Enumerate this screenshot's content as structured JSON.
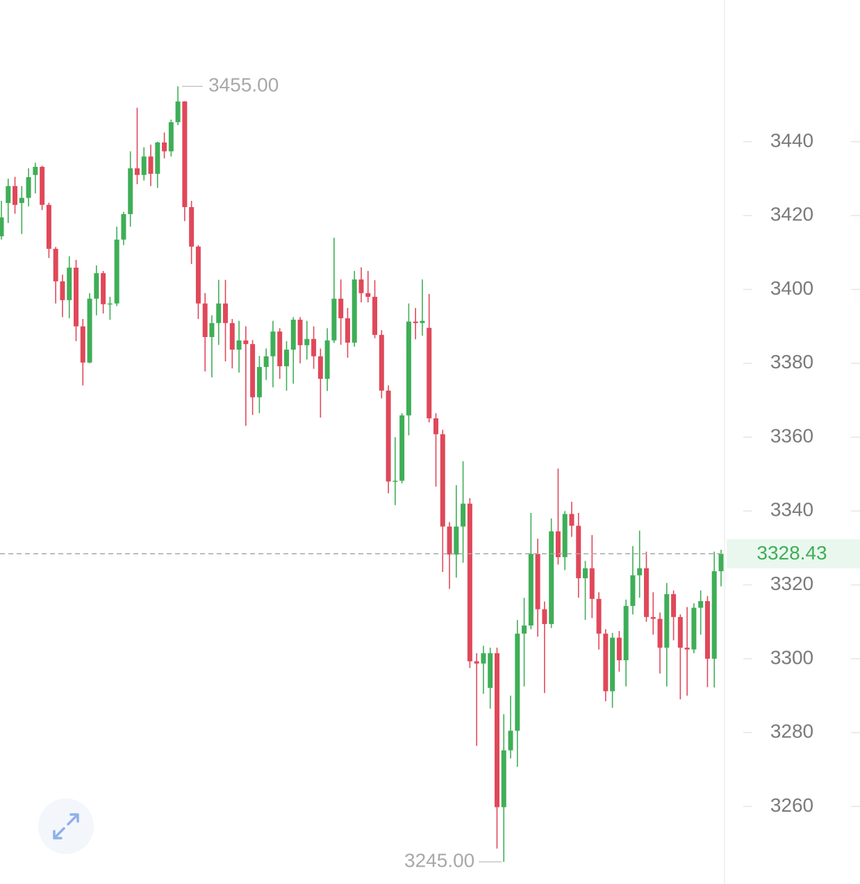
{
  "chart_data": {
    "type": "candlestick",
    "open": [
      3414.4,
      3423.4,
      3428.0,
      3423.4,
      3424.8,
      3431.0,
      3433.2,
      3422.9,
      3411.0,
      3402.2,
      3397.1,
      3405.9,
      3390.0,
      3380.2,
      3397.5,
      3404.4,
      3396.0,
      3396.2,
      3413.5,
      3420.4,
      3432.8,
      3431.0,
      3436.0,
      3431.3,
      3439.8,
      3437.4,
      3445.3,
      3450.9,
      3422.3,
      3411.6,
      3396.2,
      3387.1,
      3390.9,
      3396.2,
      3390.9,
      3383.7,
      3386.2,
      3385.2,
      3370.8,
      3379.0,
      3381.9,
      3388.6,
      3379.2,
      3383.7,
      3391.8,
      3384.9,
      3386.6,
      3381.9,
      3375.8,
      3386.2,
      3397.5,
      3392.2,
      3385.6,
      3402.7,
      3399.0,
      3398.0,
      3387.7,
      3372.6,
      3348.0,
      3348.2,
      3365.9,
      3391.3,
      3390.9,
      3389.6,
      3365.1,
      3360.8,
      3335.8,
      3328.2,
      3335.8,
      3342.0,
      3299.3,
      3298.7,
      3292.1,
      3301.5,
      3259.8,
      3275.2,
      3280.5,
      3306.8,
      3309.0,
      3328.4,
      3313.4,
      3309.4,
      3334.5,
      3327.5,
      3339.2,
      3336.0,
      3321.8,
      3324.5,
      3316.2,
      3306.8,
      3291.2,
      3305.7,
      3299.6,
      3314.3,
      3322.6,
      3324.5,
      3311.3,
      3310.8,
      3303.0,
      3317.5,
      3311.3,
      3303.0,
      3302.5,
      3313.8,
      3315.6,
      3300.0,
      3323.7
    ],
    "high": [
      3424.0,
      3430.0,
      3430.5,
      3428.0,
      3432.8,
      3434.3,
      3433.5,
      3423.5,
      3411.5,
      3404.0,
      3409.0,
      3408.0,
      3392.0,
      3399.0,
      3406.5,
      3405.0,
      3398.0,
      3417.0,
      3421.0,
      3437.4,
      3449.2,
      3438.5,
      3439.2,
      3440.0,
      3442.5,
      3446.0,
      3455,
      3451.0,
      3424.0,
      3412.0,
      3399.0,
      3393.0,
      3402.6,
      3402.6,
      3392.0,
      3391.5,
      3390.0,
      3386.3,
      3382.0,
      3384.0,
      3391.5,
      3389.5,
      3386.0,
      3392.5,
      3392.5,
      3391.5,
      3390.0,
      3384.0,
      3389.5,
      3414.0,
      3402.7,
      3395.0,
      3405.0,
      3406.0,
      3405.0,
      3402.5,
      3389.0,
      3374.0,
      3360.0,
      3366.5,
      3396.2,
      3395.0,
      3402.7,
      3398.8,
      3366.5,
      3362.0,
      3337.0,
      3347.0,
      3353.5,
      3343.5,
      3301.5,
      3303.5,
      3303.0,
      3303.0,
      3285.0,
      3290.0,
      3310.5,
      3316.5,
      3339.5,
      3332.5,
      3315.5,
      3338.0,
      3351.5,
      3340.0,
      3342.5,
      3339.5,
      3326.5,
      3333.5,
      3318.0,
      3308.0,
      3307.0,
      3307.5,
      3316.0,
      3330.5,
      3334.7,
      3329.0,
      3318.0,
      3312.5,
      3320.5,
      3318.5,
      3312.0,
      3314.0,
      3315.0,
      3318.5,
      3317.0,
      3329.0,
      3329.5
    ],
    "low": [
      3413.5,
      3418.0,
      3420.5,
      3415.0,
      3422.5,
      3426.0,
      3421.5,
      3408.5,
      3396.2,
      3392.5,
      3392.2,
      3386.0,
      3374.0,
      3380.0,
      3393.0,
      3393.5,
      3391.8,
      3395.5,
      3412.0,
      3417.0,
      3428.5,
      3429.5,
      3428.0,
      3427.5,
      3435.5,
      3436.0,
      3444.5,
      3418.5,
      3406.9,
      3392.0,
      3377.8,
      3376.2,
      3385.0,
      3380.5,
      3378.6,
      3377.5,
      3363.1,
      3366.0,
      3366.5,
      3375.5,
      3373.5,
      3375.8,
      3372.6,
      3374.5,
      3380.0,
      3381.0,
      3378.5,
      3365.3,
      3372.5,
      3385.5,
      3385.0,
      3381.5,
      3384.5,
      3396.5,
      3396.5,
      3386.8,
      3370.5,
      3344.8,
      3341.6,
      3347.5,
      3360.5,
      3386.5,
      3387.5,
      3364.0,
      3346.6,
      3323.5,
      3318.9,
      3322.0,
      3326.0,
      3297.5,
      3276.4,
      3290.5,
      3286.5,
      3248.6,
      3245,
      3273.0,
      3270.7,
      3292.5,
      3308.0,
      3306.0,
      3290.7,
      3308.3,
      3325.5,
      3324.0,
      3333.0,
      3316.5,
      3310.5,
      3311.0,
      3302.5,
      3288.5,
      3286.7,
      3296.5,
      3292.5,
      3312.0,
      3316.5,
      3310.0,
      3306.5,
      3296.0,
      3292.5,
      3305.0,
      3289.0,
      3290.0,
      3301.5,
      3306.5,
      3292.3,
      3292.2,
      3319.6
    ],
    "close": [
      3419.5,
      3428.0,
      3422.9,
      3424.8,
      3430.4,
      3433.2,
      3422.9,
      3411.0,
      3402.2,
      3397.1,
      3405.9,
      3390.0,
      3380.2,
      3397.5,
      3404.4,
      3396.0,
      3396.2,
      3413.5,
      3420.4,
      3432.8,
      3431.0,
      3436.0,
      3431.3,
      3439.8,
      3437.4,
      3445.3,
      3450.9,
      3422.3,
      3411.6,
      3396.2,
      3387.1,
      3390.9,
      3396.2,
      3390.9,
      3383.7,
      3386.2,
      3385.2,
      3370.8,
      3379.0,
      3381.9,
      3388.6,
      3379.2,
      3383.7,
      3391.8,
      3384.9,
      3386.6,
      3381.9,
      3375.8,
      3386.2,
      3397.5,
      3392.2,
      3385.6,
      3402.7,
      3399.0,
      3398.0,
      3387.7,
      3372.6,
      3348.0,
      3348.2,
      3365.9,
      3391.3,
      3390.9,
      3391.5,
      3365.1,
      3360.8,
      3335.8,
      3328.2,
      3335.8,
      3342.0,
      3299.3,
      3298.7,
      3301.5,
      3301.5,
      3259.8,
      3275.2,
      3280.5,
      3306.8,
      3309.0,
      3328.4,
      3313.4,
      3309.4,
      3334.5,
      3327.5,
      3339.2,
      3336.0,
      3321.8,
      3324.5,
      3316.2,
      3306.8,
      3291.2,
      3305.7,
      3299.6,
      3314.3,
      3322.6,
      3324.5,
      3311.3,
      3310.8,
      3303.0,
      3317.5,
      3311.3,
      3303.0,
      3302.5,
      3313.8,
      3315.6,
      3300.0,
      3323.7,
      3328.43
    ],
    "up_color": "#3fae57",
    "down_color": "#e0485a",
    "ylim": [
      3239.0,
      3478.38
    ],
    "yticks": [
      3260,
      3280,
      3300,
      3320,
      3340,
      3360,
      3380,
      3400,
      3420,
      3440
    ],
    "annotations": [
      {
        "value": 3455,
        "label": "3455.00"
      },
      {
        "value": 3245,
        "label": "3245.00"
      }
    ],
    "last_price": 3328.43
  }
}
